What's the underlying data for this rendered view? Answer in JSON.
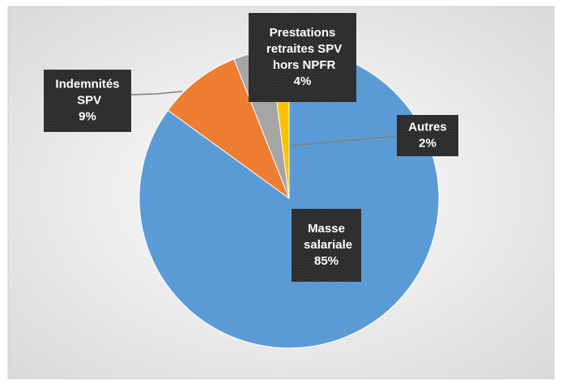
{
  "chart_data": {
    "type": "pie",
    "categories": [
      "Masse salariale",
      "Indemnités SPV",
      "Prestations retraites SPV hors NPFR",
      "Autres"
    ],
    "values": [
      85,
      9,
      4,
      2
    ],
    "value_labels": [
      "85%",
      "9%",
      "4%",
      "2%"
    ],
    "colors": [
      "#5b9bd5",
      "#ed7d31",
      "#a5a5a5",
      "#ffc000"
    ]
  }
}
